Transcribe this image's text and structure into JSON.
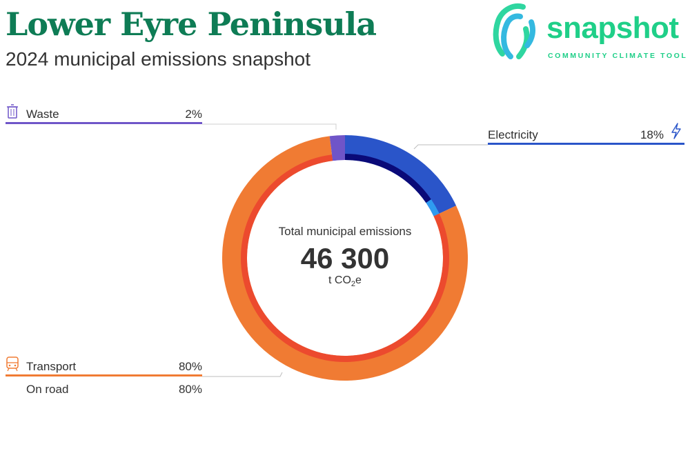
{
  "title": "Lower Eyre Peninsula",
  "subtitle": "2024 municipal emissions snapshot",
  "logo": {
    "word": "snapshot",
    "tagline": "COMMUNITY CLIMATE TOOL"
  },
  "center": {
    "label": "Total municipal emissions",
    "value": "46 300",
    "unit_prefix": "t CO",
    "unit_sub": "2",
    "unit_suffix": "e"
  },
  "sectors": {
    "waste": {
      "label": "Waste",
      "pct": "2%",
      "icon": "trash-icon",
      "color": "#6f55c8"
    },
    "electricity": {
      "label": "Electricity",
      "pct": "18%",
      "icon": "lightning-icon",
      "color": "#2a55c9"
    },
    "transport": {
      "label": "Transport",
      "pct": "80%",
      "icon": "train-icon",
      "color": "#f07b33",
      "sub": [
        {
          "label": "On road",
          "pct": "80%"
        }
      ]
    }
  },
  "chart_data": {
    "type": "donut",
    "title": "Total municipal emissions",
    "total": 46300,
    "unit": "t CO2e",
    "order": "clockwise from top",
    "outer": [
      {
        "name": "Electricity",
        "value": 18,
        "color": "#2a55c9"
      },
      {
        "name": "Transport",
        "value": 80,
        "color": "#f07b33"
      },
      {
        "name": "Waste",
        "value": 2,
        "color": "#6f55c8"
      }
    ],
    "inner": [
      {
        "parent": "Electricity",
        "value": 15.5,
        "color": "#0a0a78"
      },
      {
        "parent": "Electricity",
        "value": 2.5,
        "color": "#2f9bf0"
      },
      {
        "parent": "Transport",
        "name": "On road",
        "value": 80,
        "color": "#ec4a2e"
      },
      {
        "parent": "Waste",
        "value": 2,
        "color": "#6f55c8"
      }
    ]
  }
}
